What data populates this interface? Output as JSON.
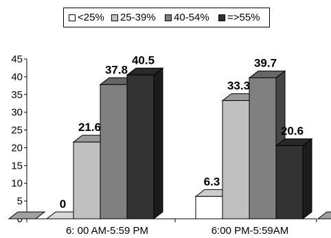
{
  "chart_data": {
    "type": "bar",
    "style": "3d-clustered-column",
    "categories": [
      "6: 00 AM-5:59 PM",
      "6:00 PM-5:59AM"
    ],
    "series": [
      {
        "name": "<25%",
        "values": [
          0,
          6.3
        ],
        "color": "#ffffff"
      },
      {
        "name": "25-39%",
        "values": [
          21.6,
          33.3
        ],
        "color": "#c0c0c0"
      },
      {
        "name": "40-54%",
        "values": [
          37.8,
          39.7
        ],
        "color": "#808080"
      },
      {
        "name": "=>55%",
        "values": [
          40.5,
          20.6
        ],
        "color": "#333333"
      }
    ],
    "data_labels": [
      [
        "0",
        "21.6",
        "37.8",
        "40.5"
      ],
      [
        "6.3",
        "33.3",
        "39.7",
        "20.6"
      ]
    ],
    "ylim": [
      0,
      45
    ],
    "yticks": [
      "0",
      "5",
      "10",
      "15",
      "20",
      "25",
      "30",
      "35",
      "40",
      "45"
    ],
    "grid": false,
    "legend_position": "top"
  }
}
